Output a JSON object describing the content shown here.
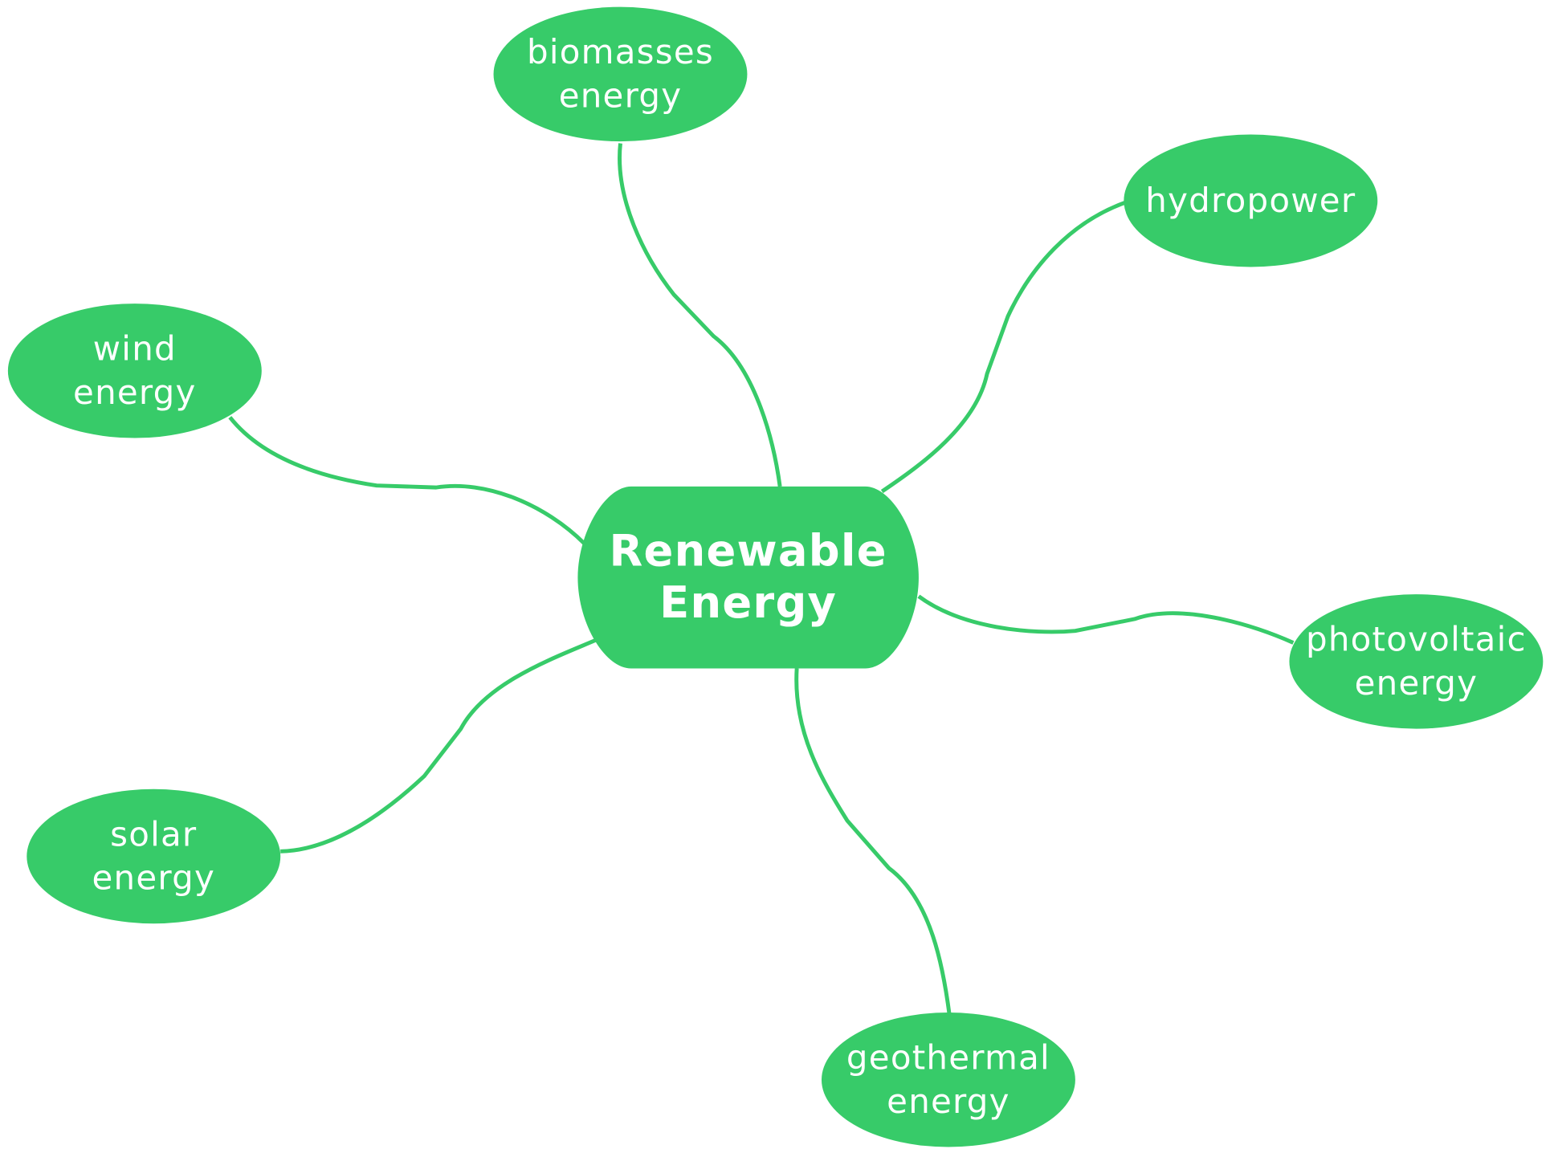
{
  "center": {
    "label": [
      "Renewable",
      "Energy"
    ]
  },
  "nodes": [
    {
      "label": [
        "biomasses",
        "energy"
      ]
    },
    {
      "label": [
        "hydropower"
      ]
    },
    {
      "label": [
        "wind",
        "energy"
      ]
    },
    {
      "label": [
        "photovoltaic",
        "energy"
      ]
    },
    {
      "label": [
        "solar",
        "energy"
      ]
    },
    {
      "label": [
        "geothermal",
        "energy"
      ]
    }
  ]
}
